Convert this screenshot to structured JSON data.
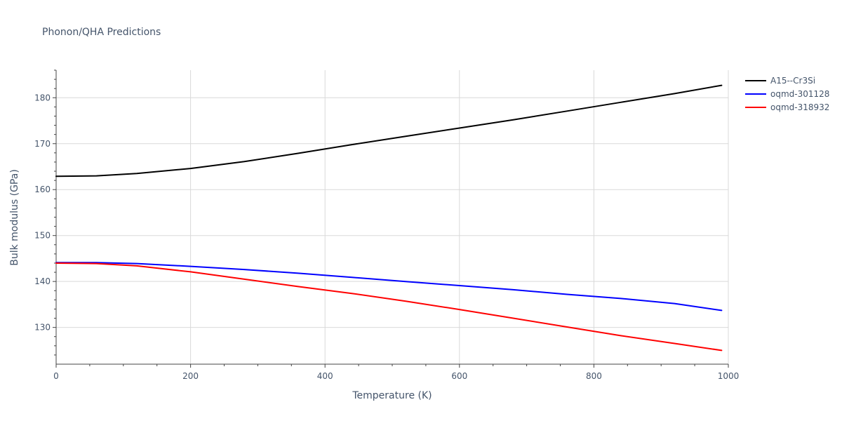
{
  "chart_data": {
    "type": "line",
    "title": "Phonon/QHA Predictions",
    "xlabel": "Temperature (K)",
    "ylabel": "Bulk modulus (GPa)",
    "xlim": [
      0,
      1000
    ],
    "ylim": [
      122,
      186
    ],
    "xticks": [
      0,
      200,
      400,
      600,
      800,
      1000
    ],
    "yticks": [
      130,
      140,
      150,
      160,
      170,
      180
    ],
    "grid": true,
    "legend_position": "top-right",
    "x": [
      0,
      60,
      120,
      200,
      280,
      360,
      440,
      520,
      600,
      680,
      760,
      840,
      920,
      990
    ],
    "series": [
      {
        "name": "A15--Cr3Si",
        "color": "#000000",
        "values": [
          162.9,
          163.0,
          163.5,
          164.6,
          166.1,
          167.9,
          169.8,
          171.6,
          173.4,
          175.2,
          177.1,
          179.0,
          180.9,
          182.7
        ]
      },
      {
        "name": "oqmd-301128",
        "color": "#0000ff",
        "values": [
          144.1,
          144.1,
          143.9,
          143.3,
          142.6,
          141.8,
          140.9,
          140.0,
          139.1,
          138.2,
          137.2,
          136.3,
          135.2,
          133.7
        ]
      },
      {
        "name": "oqmd-318932",
        "color": "#ff0000",
        "values": [
          144.0,
          143.9,
          143.4,
          142.1,
          140.5,
          138.9,
          137.4,
          135.7,
          133.9,
          132.0,
          130.1,
          128.2,
          126.5,
          125.0
        ]
      }
    ]
  }
}
